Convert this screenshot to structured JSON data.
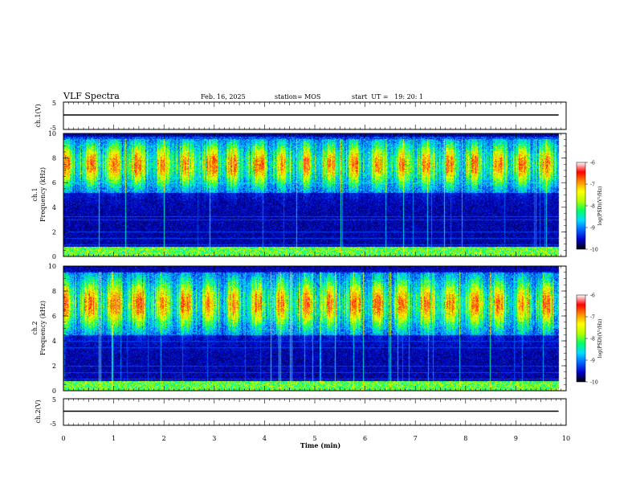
{
  "header": {
    "title": "VLF Spectra",
    "date": "Feb. 16, 2025",
    "station": "station= MOS",
    "start": "start  UT =   19: 20: 1"
  },
  "colors": {
    "background": "#000000",
    "colormap": [
      "#000000",
      "#0000c8",
      "#0064ff",
      "#00dcff",
      "#00ff64",
      "#b4ff00",
      "#ffff00",
      "#ff8c00",
      "#ff0000",
      "#ffffff"
    ]
  },
  "chart_data": [
    {
      "type": "line",
      "ylabel": "ch.1(V)",
      "ylim": [
        -5,
        5
      ],
      "yticks": [
        "5",
        "-5"
      ],
      "series": [
        {
          "x": [
            0,
            9.85
          ],
          "values": [
            0,
            0
          ]
        }
      ]
    },
    {
      "type": "heatmap",
      "ylabel": "ch.1",
      "ylabel2": "Frequency (kHz)",
      "ylim": [
        0,
        10
      ],
      "yticks": [
        "0",
        "2",
        "4",
        "6",
        "8",
        "10"
      ],
      "xlim": [
        0,
        10
      ],
      "data_extent_min": 9.85,
      "colorbar": {
        "label": "log(PSD)(V²/Hz)",
        "ticks": [
          "-6",
          "-7",
          "-8",
          "-9",
          "-10"
        ],
        "range": [
          -10,
          -6
        ]
      },
      "band_center_khz": 7.5,
      "band_halfwidth_khz": 1.8,
      "lines_khz": [
        0.5,
        1.0,
        1.5,
        2.0,
        3.0,
        3.3,
        6.0
      ]
    },
    {
      "type": "heatmap",
      "ylabel": "ch.2",
      "ylabel2": "Frequency (kHz)",
      "ylim": [
        0,
        10
      ],
      "yticks": [
        "0",
        "2",
        "4",
        "6",
        "8",
        "10"
      ],
      "xlim": [
        0,
        10
      ],
      "data_extent_min": 9.85,
      "colorbar": {
        "label": "log(PSD)(V²/Hz)",
        "ticks": [
          "-6",
          "-7",
          "-8",
          "-9",
          "-10"
        ],
        "range": [
          -10,
          -6
        ]
      },
      "band_center_khz": 7.0,
      "band_halfwidth_khz": 2.0,
      "lines_khz": [
        0.5,
        1.0,
        1.5,
        2.0,
        3.5,
        4.0
      ]
    },
    {
      "type": "line",
      "ylabel": "ch.2(V)",
      "ylim": [
        -5,
        5
      ],
      "yticks": [
        "5",
        "-5"
      ],
      "series": [
        {
          "x": [
            0,
            9.85
          ],
          "values": [
            0,
            0
          ]
        }
      ]
    }
  ],
  "xaxis": {
    "label": "Time (min)",
    "ticks": [
      "0",
      "1",
      "2",
      "3",
      "4",
      "5",
      "6",
      "7",
      "8",
      "9",
      "10"
    ]
  }
}
